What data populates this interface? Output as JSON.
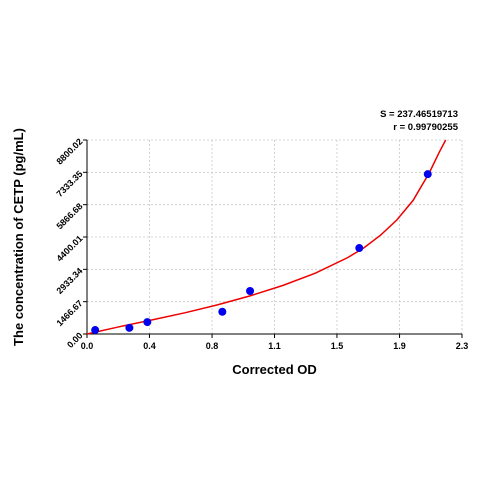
{
  "chart_data": {
    "type": "scatter",
    "xlabel": "Corrected OD",
    "ylabel": "The concentration of CETP (pg/mL)",
    "xlim": [
      0,
      2.3
    ],
    "ylim": [
      0,
      8800.02
    ],
    "x_ticks": [
      "0.0",
      "0.4",
      "0.8",
      "1.1",
      "1.5",
      "1.9",
      "2.3"
    ],
    "x_tick_values": [
      0,
      0.383,
      0.767,
      1.15,
      1.533,
      1.917,
      2.3
    ],
    "y_ticks": [
      "0.00",
      "1466.67",
      "2933.34",
      "4400.01",
      "5866.68",
      "7333.35",
      "8800.02"
    ],
    "y_tick_values": [
      0,
      1466.67,
      2933.34,
      4400.01,
      5866.68,
      7333.35,
      8800.02
    ],
    "grid": true,
    "stats": {
      "s": "S = 237.46519713",
      "r": "r = 0.99790255"
    },
    "points": [
      {
        "x": 0.05,
        "y": 180
      },
      {
        "x": 0.26,
        "y": 280
      },
      {
        "x": 0.37,
        "y": 540
      },
      {
        "x": 0.83,
        "y": 1010
      },
      {
        "x": 1.0,
        "y": 1950
      },
      {
        "x": 1.67,
        "y": 3900
      },
      {
        "x": 2.09,
        "y": 7250
      }
    ],
    "fit_curve": [
      {
        "x": 0.0,
        "y": 0
      },
      {
        "x": 0.2,
        "y": 330
      },
      {
        "x": 0.4,
        "y": 640
      },
      {
        "x": 0.6,
        "y": 960
      },
      {
        "x": 0.8,
        "y": 1320
      },
      {
        "x": 1.0,
        "y": 1730
      },
      {
        "x": 1.2,
        "y": 2200
      },
      {
        "x": 1.4,
        "y": 2760
      },
      {
        "x": 1.6,
        "y": 3470
      },
      {
        "x": 1.7,
        "y": 3920
      },
      {
        "x": 1.8,
        "y": 4480
      },
      {
        "x": 1.9,
        "y": 5170
      },
      {
        "x": 2.0,
        "y": 6060
      },
      {
        "x": 2.1,
        "y": 7320
      },
      {
        "x": 2.16,
        "y": 8240
      },
      {
        "x": 2.2,
        "y": 8800
      }
    ],
    "colors": {
      "points": "#0000ee",
      "fit_curve": "#ee0000",
      "grid": "#c8c8c8",
      "axis": "#000000"
    }
  }
}
